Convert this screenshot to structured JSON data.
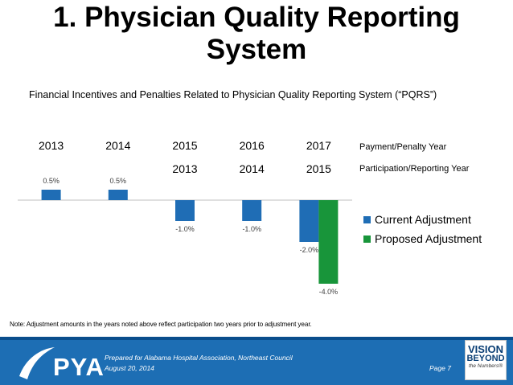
{
  "slide": {
    "title_line1": "1. Physician Quality Reporting",
    "title_line2": "System",
    "subtitle": "Financial Incentives and Penalties Related to Physician Quality Reporting System (“PQRS”)",
    "note": "Note: Adjustment amounts in the years noted above reflect participation two years prior to adjustment year."
  },
  "chart_data": {
    "type": "bar",
    "categories": [
      "2013",
      "2014",
      "2015",
      "2016",
      "2017"
    ],
    "participation_years": [
      "",
      "",
      "2013",
      "2014",
      "2015"
    ],
    "row_labels": {
      "payment": "Payment/Penalty Year",
      "participation": "Participation/Reporting Year"
    },
    "series": [
      {
        "name": "Current Adjustment",
        "color": "#1f6db5",
        "values": [
          0.5,
          0.5,
          -1.0,
          -1.0,
          -2.0
        ],
        "labels": [
          "0.5%",
          "0.5%",
          "-1.0%",
          "-1.0%",
          "-2.0%"
        ]
      },
      {
        "name": "Proposed Adjustment",
        "color": "#18953a",
        "values": [
          null,
          null,
          null,
          null,
          -4.0
        ],
        "labels": [
          "",
          "",
          "",
          "",
          "-4.0%"
        ]
      }
    ],
    "ylim": [
      -4.0,
      0.5
    ],
    "legend_position": "right",
    "grid": false
  },
  "footer": {
    "line1": "Prepared for Alabama Hospital Association, Northeast Council",
    "line2": "August 20, 2014",
    "page": "Page 7",
    "logo_text": "PYA",
    "badge_line1": "VISION",
    "badge_line2": "BEYOND",
    "badge_line3": "the Numbers®"
  },
  "colors": {
    "footer_bg": "#1d6eb4",
    "current": "#1f6db5",
    "proposed": "#18953a"
  }
}
